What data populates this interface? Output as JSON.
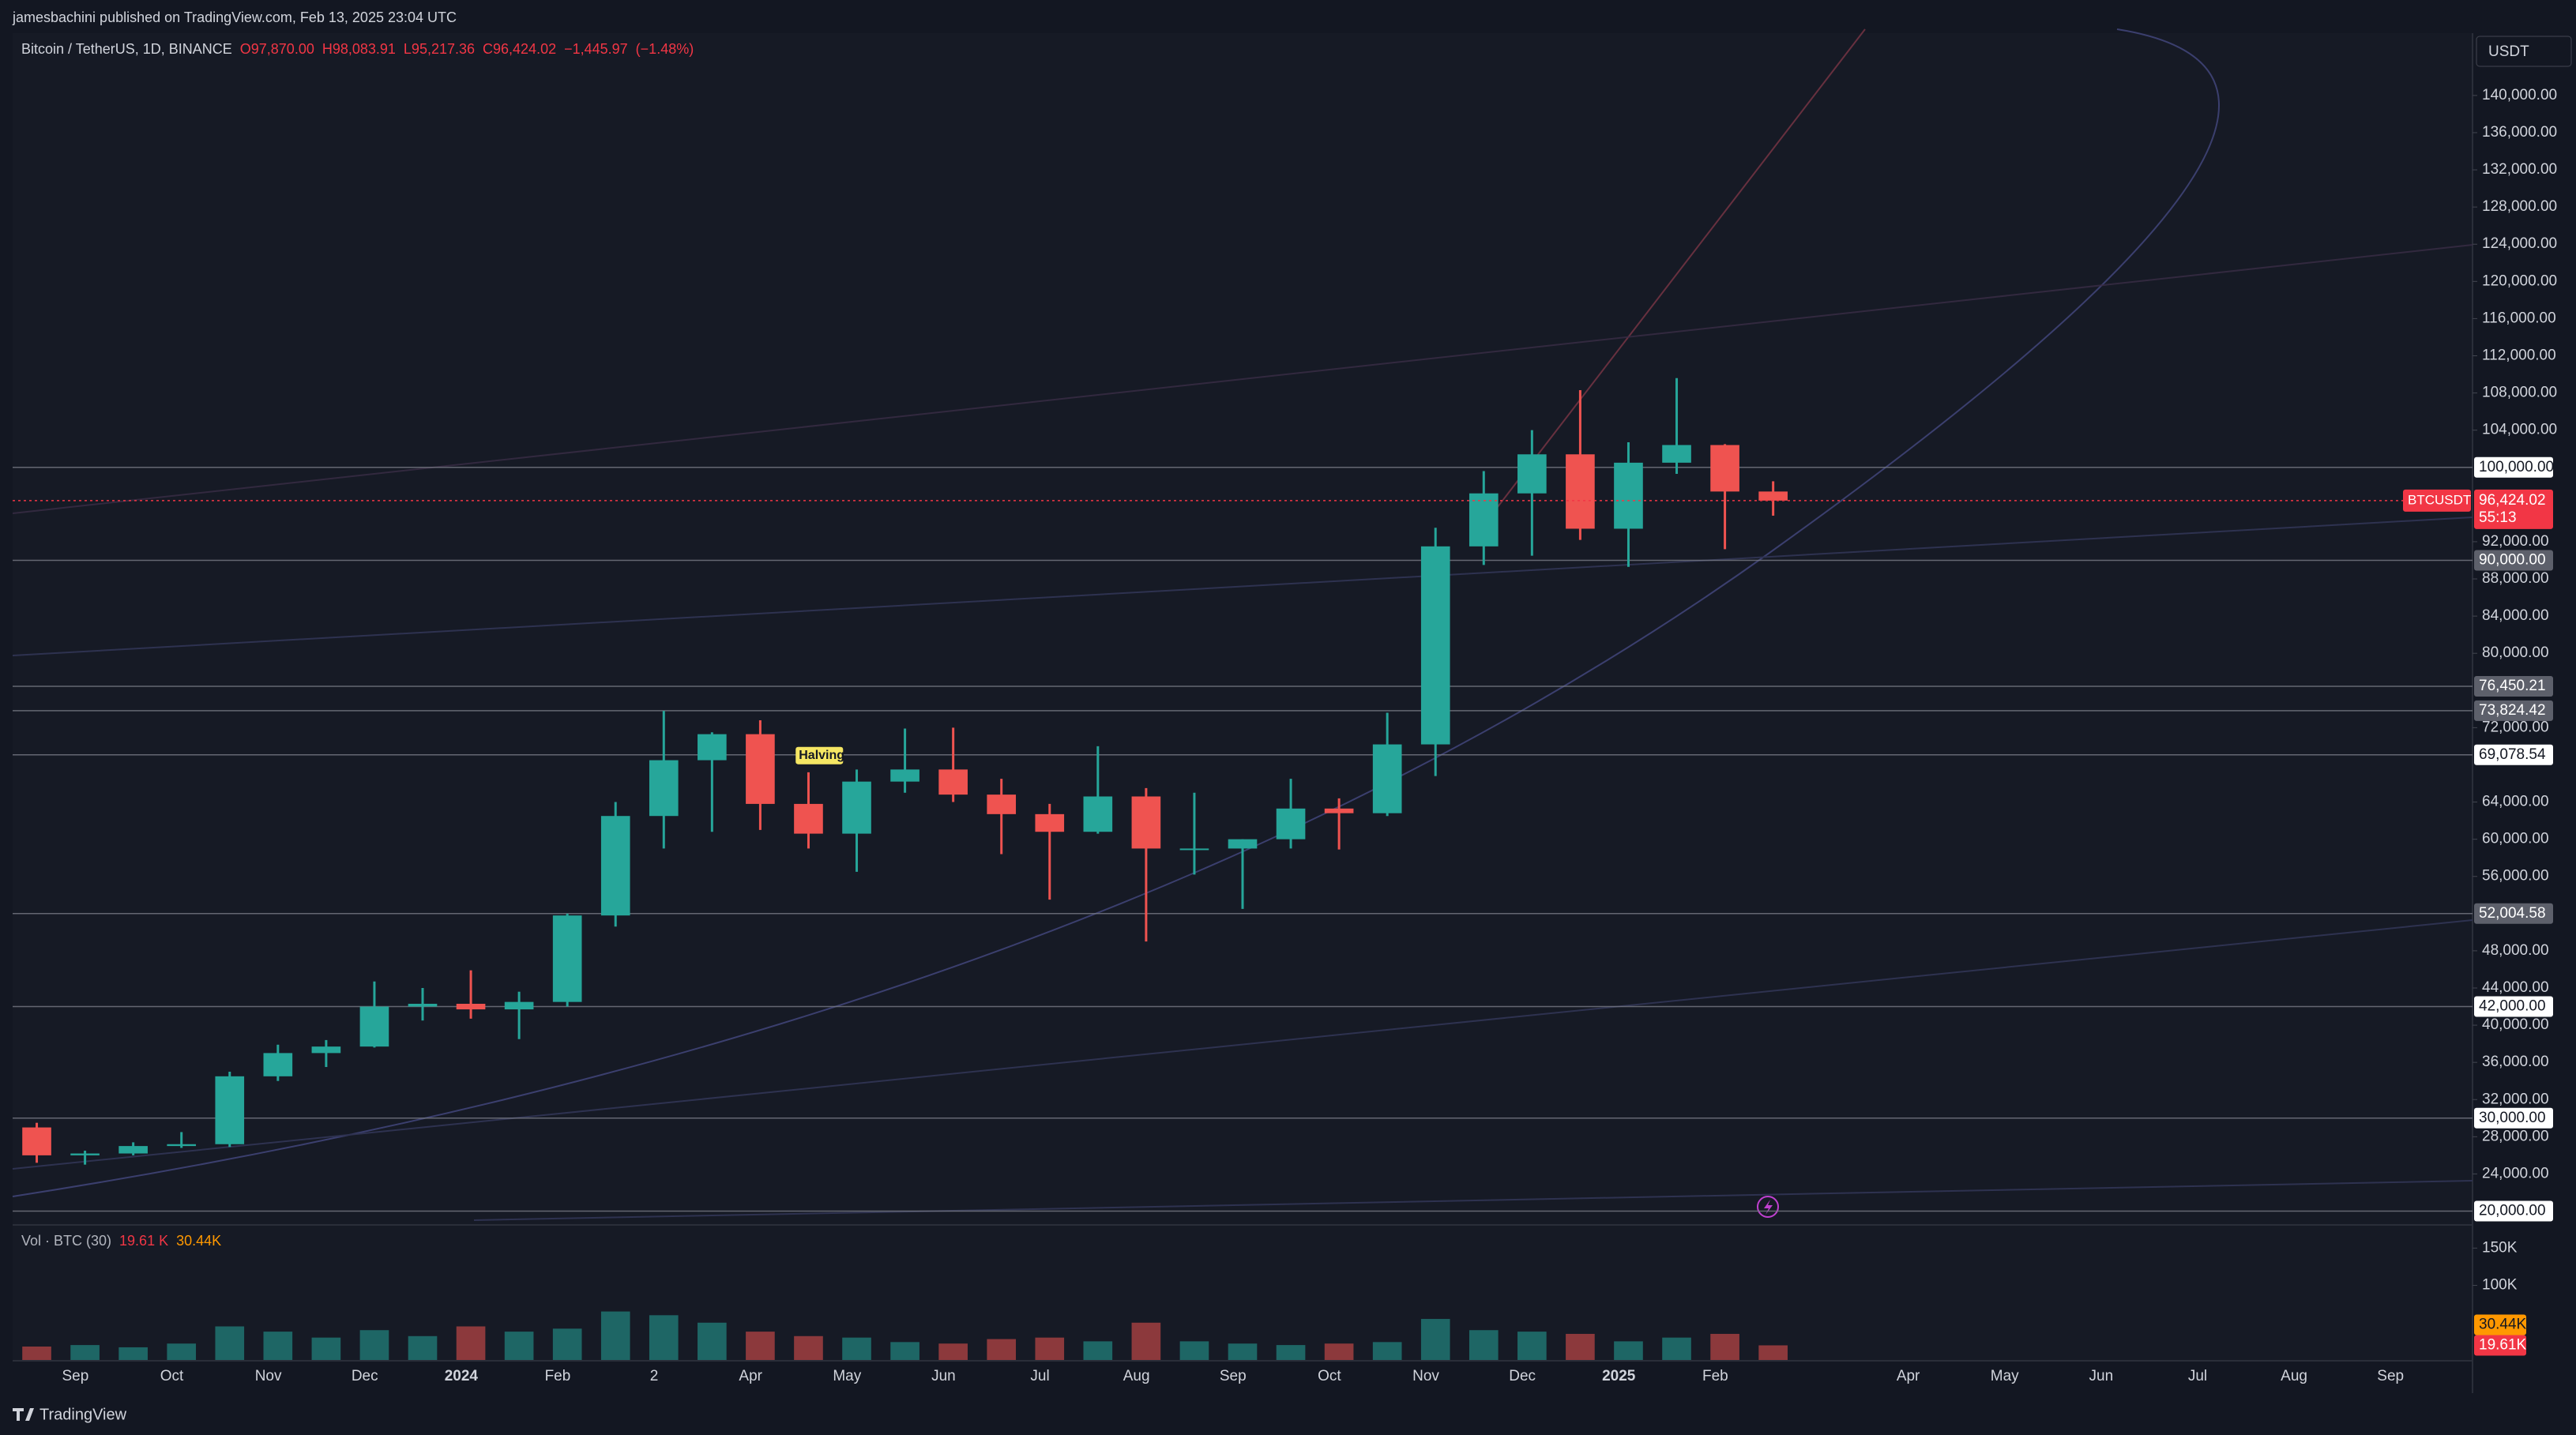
{
  "header": {
    "publisher": "jamesbachini published on TradingView.com, Feb 13, 2025 23:04 UTC",
    "brand": "TradingView"
  },
  "chart_data": {
    "type": "candlestick",
    "title": "Bitcoin / TetherUS, 1D, BINANCE",
    "legend": {
      "open": {
        "value": 97870,
        "label": "O97,870.00"
      },
      "high": {
        "value": 98083.91,
        "label": "H98,083.91"
      },
      "low": {
        "value": 95217.36,
        "label": "L95,217.36"
      },
      "close": {
        "value": 96424.02,
        "label": "C96,424.02"
      },
      "change": {
        "value": -1445.97,
        "label": "−1,445.97"
      },
      "change_pct": {
        "value": -1.48,
        "label": "(−1.48%)"
      }
    },
    "categories": [
      null,
      "Sep",
      null,
      "Oct",
      null,
      "Nov",
      null,
      "Dec",
      null,
      "2024",
      null,
      "Feb",
      null,
      "2",
      null,
      "Apr",
      null,
      "May",
      null,
      "Jun",
      null,
      "Jul",
      null,
      "Aug",
      null,
      "Sep",
      null,
      "Oct",
      null,
      "Nov",
      null,
      "Dec",
      null,
      "2025",
      null,
      "Feb",
      null,
      null,
      null,
      "Apr",
      null,
      "May",
      null,
      "Jun",
      null,
      "Jul",
      null,
      "Aug",
      null,
      "Sep",
      null
    ],
    "open": [
      29000,
      26000,
      26200,
      27000,
      27200,
      34500,
      37000,
      37700,
      42000,
      42300,
      41700,
      42500,
      51800,
      62500,
      68500,
      71300,
      63800,
      60600,
      66200,
      67500,
      64800,
      62700,
      60800,
      64600,
      59000,
      59000,
      60000,
      63300,
      62800,
      70200,
      91500,
      97200,
      101400,
      93400,
      100500,
      102400,
      97400,
      null,
      null,
      null,
      null,
      null,
      null,
      null,
      null,
      null,
      null,
      null,
      null,
      null,
      null
    ],
    "high": [
      29500,
      26500,
      27400,
      28500,
      35000,
      37900,
      38400,
      44700,
      44000,
      45900,
      43600,
      52000,
      64000,
      73800,
      71500,
      72800,
      67200,
      67500,
      71900,
      72000,
      66500,
      63800,
      70000,
      65500,
      65000,
      60000,
      66500,
      64400,
      73600,
      93500,
      99600,
      104000,
      108300,
      102700,
      109600,
      102500,
      98500,
      null,
      null,
      null,
      null,
      null,
      null,
      null,
      null,
      null,
      null,
      null,
      null,
      null,
      null
    ],
    "low": [
      25200,
      25000,
      26000,
      26800,
      26900,
      34000,
      35500,
      37600,
      40500,
      40700,
      38500,
      42000,
      50600,
      59000,
      60800,
      61000,
      59000,
      56500,
      65000,
      64000,
      58400,
      53500,
      60600,
      49000,
      56200,
      52500,
      59000,
      58900,
      62500,
      66800,
      89500,
      90500,
      92200,
      89300,
      99300,
      91200,
      94800,
      null,
      null,
      null,
      null,
      null,
      null,
      null,
      null,
      null,
      null,
      null,
      null,
      null,
      null
    ],
    "close": [
      26000,
      26200,
      27000,
      27200,
      34500,
      37000,
      37700,
      42000,
      42300,
      41700,
      42500,
      51800,
      62500,
      68500,
      71300,
      63800,
      60600,
      66200,
      67500,
      64800,
      62700,
      60800,
      64600,
      59000,
      59000,
      60000,
      63300,
      62800,
      70200,
      91500,
      97200,
      101400,
      93400,
      100500,
      102400,
      97400,
      96424.02,
      null,
      null,
      null,
      null,
      null,
      null,
      null,
      null,
      null,
      null,
      null,
      null,
      null,
      null
    ],
    "up_color": "#26a69a",
    "down_color": "#ef5350",
    "ylim": [
      18600,
      146700
    ],
    "yticks": [
      {
        "value": 24000,
        "label": "24,000.00"
      },
      {
        "value": 28000,
        "label": "28,000.00"
      },
      {
        "value": 32000,
        "label": "32,000.00"
      },
      {
        "value": 36000,
        "label": "36,000.00"
      },
      {
        "value": 40000,
        "label": "40,000.00"
      },
      {
        "value": 44000,
        "label": "44,000.00"
      },
      {
        "value": 48000,
        "label": "48,000.00"
      },
      {
        "value": 56000,
        "label": "56,000.00"
      },
      {
        "value": 60000,
        "label": "60,000.00"
      },
      {
        "value": 64000,
        "label": "64,000.00"
      },
      {
        "value": 72000,
        "label": "72,000.00"
      },
      {
        "value": 80000,
        "label": "80,000.00"
      },
      {
        "value": 84000,
        "label": "84,000.00"
      },
      {
        "value": 88000,
        "label": "88,000.00"
      },
      {
        "value": 92000,
        "label": "92,000.00"
      },
      {
        "value": 104000,
        "label": "104,000.00"
      },
      {
        "value": 108000,
        "label": "108,000.00"
      },
      {
        "value": 112000,
        "label": "112,000.00"
      },
      {
        "value": 116000,
        "label": "116,000.00"
      },
      {
        "value": 120000,
        "label": "120,000.00"
      },
      {
        "value": 124000,
        "label": "124,000.00"
      },
      {
        "value": 128000,
        "label": "128,000.00"
      },
      {
        "value": 132000,
        "label": "132,000.00"
      },
      {
        "value": 136000,
        "label": "136,000.00"
      },
      {
        "value": 140000,
        "label": "140,000.00"
      }
    ],
    "grid": false,
    "price_scale_unit": "USDT",
    "levels": [
      {
        "value": 100000,
        "label": "100,000.00",
        "light": true
      },
      {
        "value": 90000,
        "label": "90,000.00",
        "light": false
      },
      {
        "value": 76450.21,
        "label": "76,450.21",
        "light": false
      },
      {
        "value": 73824.42,
        "label": "73,824.42",
        "light": false
      },
      {
        "value": 69078.54,
        "label": "69,078.54",
        "light": true
      },
      {
        "value": 52004.58,
        "label": "52,004.58",
        "light": false
      },
      {
        "value": 42000,
        "label": "42,000.00",
        "light": true
      },
      {
        "value": 30000,
        "label": "30,000.00",
        "light": true
      },
      {
        "value": 20000,
        "label": "20,000.00",
        "light": true
      }
    ],
    "last_price": {
      "symbol": "BTCUSDT",
      "value": 96424.02,
      "label": "96,424.02",
      "countdown": "55:13",
      "color": "#f23645"
    },
    "annotation": "Halving",
    "volume": {
      "title": "Vol · BTC (30)",
      "values": [
        18000,
        20000,
        17000,
        22000,
        45000,
        38000,
        30000,
        40000,
        32000,
        45000,
        38000,
        42000,
        65000,
        60000,
        50000,
        38000,
        32000,
        30000,
        24000,
        22000,
        28000,
        30000,
        25000,
        50000,
        25000,
        22000,
        20000,
        22000,
        24000,
        55000,
        40000,
        38000,
        35000,
        25000,
        30000,
        35000,
        19610,
        null,
        null,
        null,
        null,
        null,
        null,
        null,
        null,
        null,
        null,
        null,
        null,
        null,
        null
      ],
      "last": {
        "value": 19610,
        "label": "19.61 K"
      },
      "last_axis": {
        "value": 19610,
        "label": "19.61K"
      },
      "ma": {
        "value": 30440,
        "label": "30.44K"
      },
      "ma_color": "#ff9800",
      "ylim": [
        0,
        180000
      ],
      "yticks": [
        {
          "value": 100000,
          "label": "100K"
        },
        {
          "value": 150000,
          "label": "150K"
        }
      ]
    }
  }
}
